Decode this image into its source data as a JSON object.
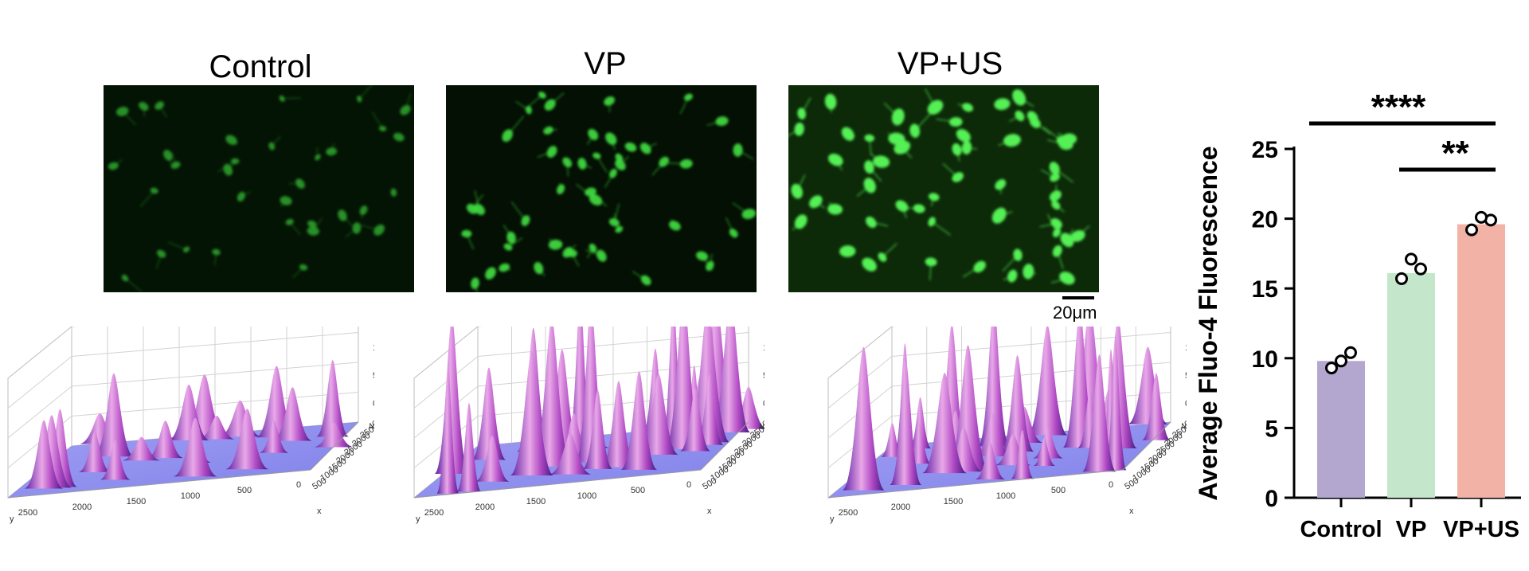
{
  "panels": [
    {
      "title": "Control"
    },
    {
      "title": "VP"
    },
    {
      "title": "VP+US"
    }
  ],
  "scale_bar": {
    "label": "20μm"
  },
  "surface_plots": {
    "z_axis_label": "z",
    "x_axis_label": "x",
    "y_axis_label": "y",
    "z_ticks": [
      "100",
      "50",
      "0"
    ],
    "x_ticks": [
      "500",
      "1000",
      "1500",
      "2000",
      "2500",
      "3000",
      "3500",
      "4000"
    ],
    "y_ticks": [
      "2500",
      "2000",
      "1500",
      "1000",
      "500",
      "0"
    ]
  },
  "chart_data": {
    "type": "bar",
    "categories": [
      "Control",
      "VP",
      "VP+US"
    ],
    "values": [
      9.8,
      16.1,
      19.6
    ],
    "points": [
      [
        9.3,
        10.4,
        9.8
      ],
      [
        15.7,
        16.4,
        17.1
      ],
      [
        19.2,
        19.9,
        20.1
      ]
    ],
    "colors": [
      "#b3a6cf",
      "#c4e6cb",
      "#f2b3a6"
    ],
    "ylabel": "Average Fluo-4 Fluorescence",
    "ylim": [
      0,
      25
    ],
    "yticks": [
      0,
      5,
      10,
      15,
      20,
      25
    ],
    "significance": [
      {
        "from": "Control",
        "to": "VP+US",
        "label": "****"
      },
      {
        "from": "VP",
        "to": "VP+US",
        "label": "**"
      }
    ]
  }
}
